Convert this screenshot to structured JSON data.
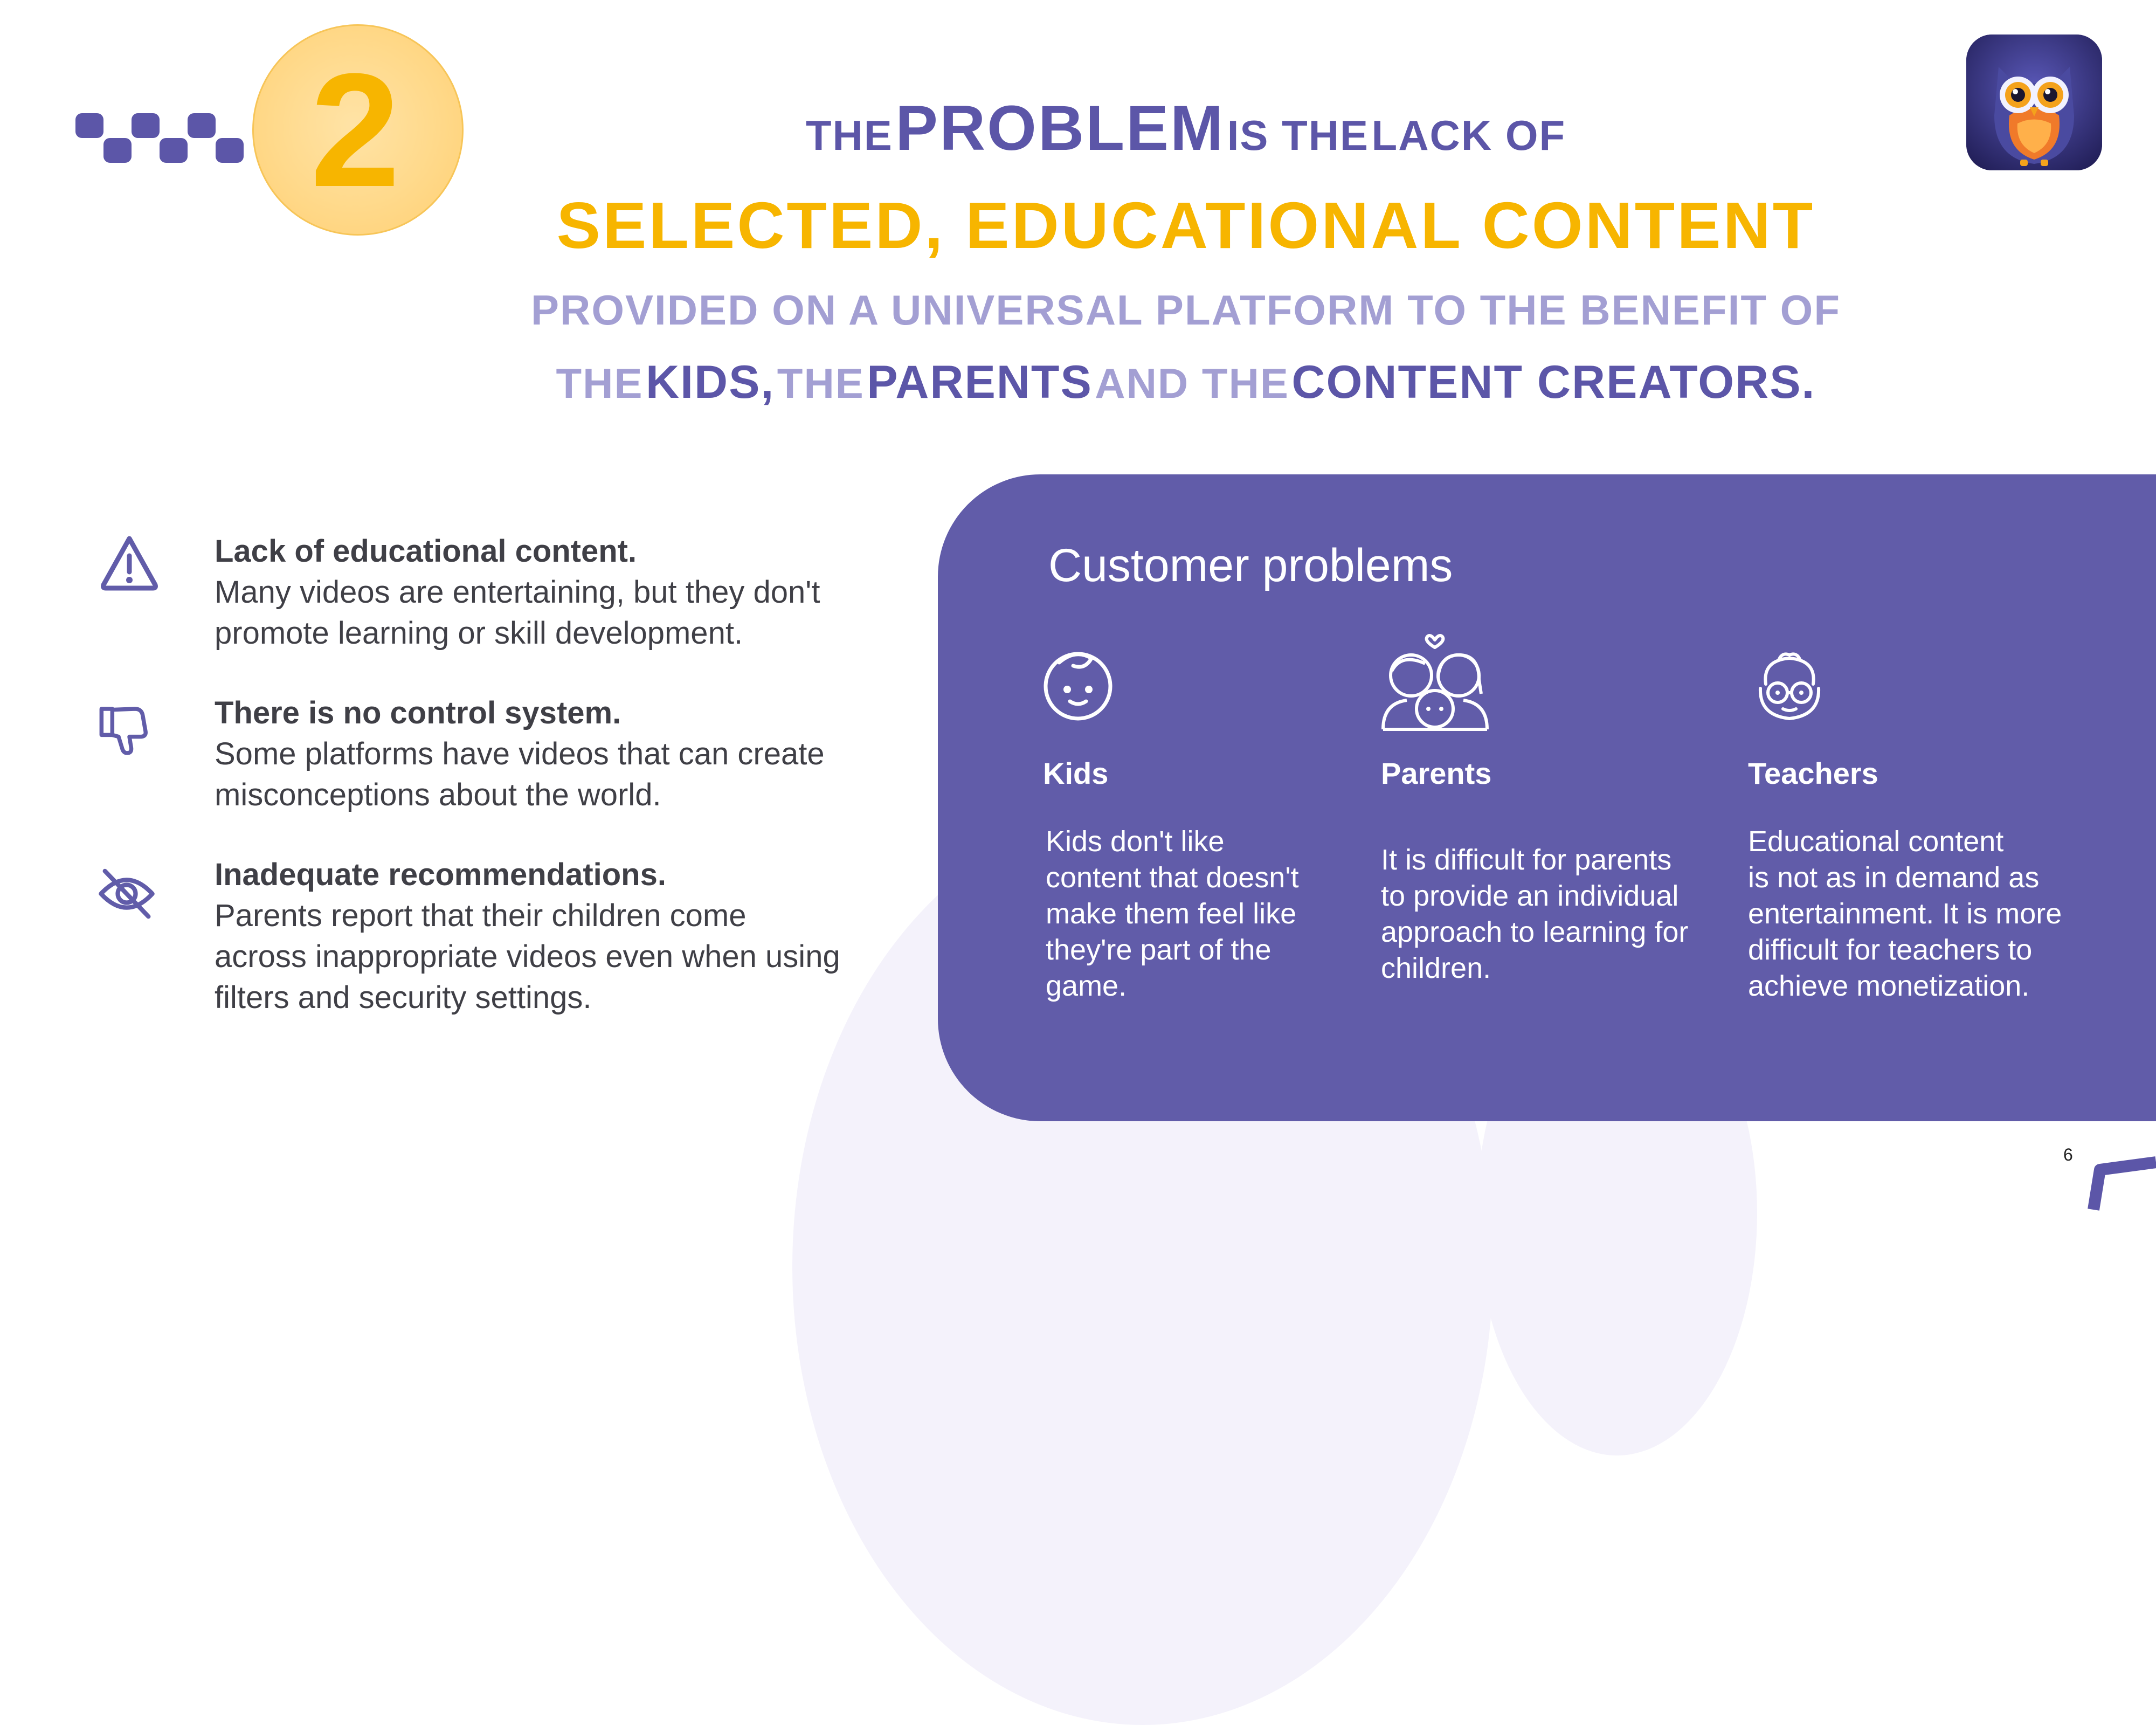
{
  "slide": {
    "number_badge": "2",
    "page_number": "6"
  },
  "headline": {
    "line1": {
      "a": "THE",
      "b": "PROBLEM",
      "c": "IS THE",
      "d": "LACK OF"
    },
    "line2": "SELECTED, EDUCATIONAL CONTENT",
    "line3": "PROVIDED ON A UNIVERSAL PLATFORM TO THE BENEFIT OF",
    "line4": {
      "a": "THE",
      "b": "KIDS,",
      "c": "THE",
      "d": "PARENTS",
      "e": "AND THE",
      "f": "CONTENT CREATORS."
    }
  },
  "problems": [
    {
      "icon": "warning-triangle-icon",
      "title": "Lack of educational content.",
      "desc1": "Many videos are entertaining, but they don't",
      "desc2": "promote learning or skill development."
    },
    {
      "icon": "thumbs-down-icon",
      "title": "There is no control system.",
      "desc1": "Some platforms have videos that can create",
      "desc2": "misconceptions about the world."
    },
    {
      "icon": "eye-off-icon",
      "title": "Inadequate recommendations.",
      "desc1": "Parents report that their children come",
      "desc2": "across inappropriate videos even when using",
      "desc3": "filters and security settings."
    }
  ],
  "customer_panel": {
    "title": "Customer problems",
    "columns": [
      {
        "icon": "kid-face-icon",
        "title": "Kids",
        "lines": [
          "Kids don't like",
          "content that doesn't",
          "make them feel like",
          "they're part of the",
          "game."
        ]
      },
      {
        "icon": "family-icon",
        "title": "Parents",
        "lines": [
          "It is difficult for parents",
          "to provide an individual",
          "approach to learning for",
          "children."
        ]
      },
      {
        "icon": "teacher-glasses-icon",
        "title": "Teachers",
        "lines": [
          "Educational content",
          "is not as in demand as",
          "entertainment. It is more",
          "difficult for teachers to",
          "achieve monetization."
        ]
      }
    ]
  },
  "colors": {
    "purple": "#615ca9",
    "headline_purple": "#5c56a8",
    "light_purple": "#a39fd3",
    "yellow": "#f7b500",
    "badge": "#ffd98a",
    "text": "#3f3f46"
  }
}
